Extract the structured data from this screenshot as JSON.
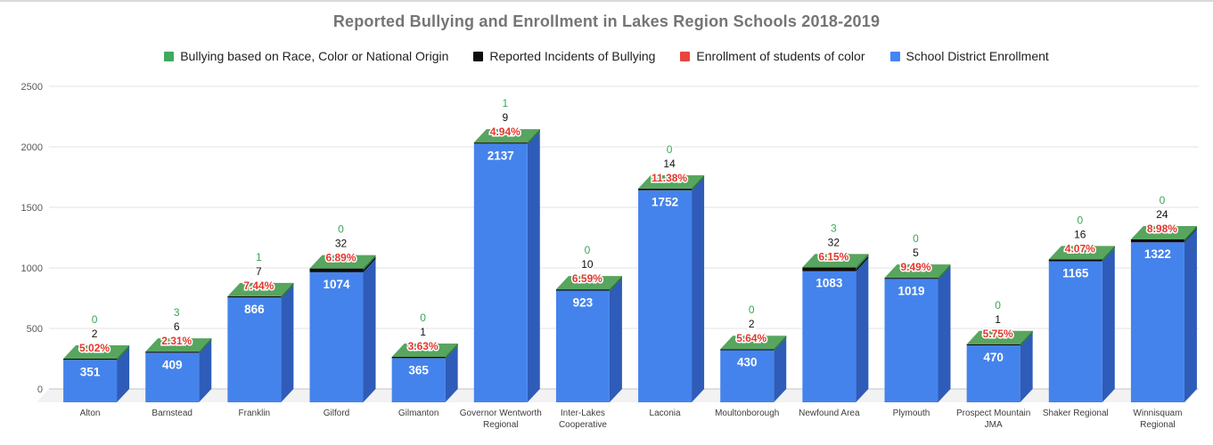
{
  "title": "Reported Bullying and Enrollment in Lakes Region Schools 2018-2019",
  "legend": [
    {
      "label": "Bullying based on Race, Color or National Origin",
      "color": "#3daa5e"
    },
    {
      "label": "Reported Incidents of Bullying",
      "color": "#0d0d0d"
    },
    {
      "label": "Enrollment of students of color",
      "color": "#e8453c"
    },
    {
      "label": "School District Enrollment",
      "color": "#4285f4"
    }
  ],
  "chart_data": {
    "type": "bar",
    "subtype": "3d-stacked-column",
    "title": "Reported Bullying and Enrollment in Lakes Region Schools 2018-2019",
    "categories": [
      "Alton",
      "Barnstead",
      "Franklin",
      "Gilford",
      "Gilmanton",
      "Governor Wentworth Regional",
      "Inter-Lakes Cooperative",
      "Laconia",
      "Moultonborough",
      "Newfound Area",
      "Plymouth",
      "Prospect Mountain JMA",
      "Shaker Regional",
      "Winnisquam Regional"
    ],
    "series": [
      {
        "name": "Bullying based on Race, Color or National Origin",
        "color": "#3aa757",
        "values": [
          0,
          3,
          1,
          0,
          0,
          1,
          0,
          0,
          0,
          3,
          0,
          0,
          0,
          0
        ]
      },
      {
        "name": "Reported Incidents of Bullying",
        "color": "#0d0d0d",
        "values": [
          2,
          6,
          7,
          32,
          1,
          9,
          10,
          14,
          2,
          32,
          5,
          1,
          16,
          24
        ]
      },
      {
        "name": "Enrollment of students of color",
        "color": "#e4372d",
        "values": [
          "5.02%",
          "2.31%",
          "7.44%",
          "6.89%",
          "3.63%",
          "4.94%",
          "6.59%",
          "11.38%",
          "5.64%",
          "6.15%",
          "9.49%",
          "5.75%",
          "4.07%",
          "8.98%"
        ]
      },
      {
        "name": "School District Enrollment",
        "color": "#4583ec",
        "values": [
          351,
          409,
          866,
          1074,
          365,
          2137,
          923,
          1752,
          430,
          1083,
          1019,
          470,
          1165,
          1322
        ]
      }
    ],
    "y_ticks": [
      0,
      500,
      1000,
      1500,
      2000,
      2500
    ],
    "ylim": [
      0,
      2500
    ],
    "grid": true,
    "legend_position": "top",
    "colors": {
      "bar_front": "#4583ec",
      "bar_side": "#2e5cb8",
      "cap_top": "#57a55f",
      "cap_edge": "#2f7a3e",
      "band_front": "#0d0d0d",
      "band_side": "#000000",
      "label_green": "#3aa757",
      "label_black": "#111111",
      "label_red": "#e4372d",
      "label_white": "#ffffff",
      "grid_line": "#e3e3e3",
      "floor_fill": "#f2f2f2",
      "floor_edge": "#cfcfcf",
      "tick_text": "#58595b",
      "axis_text": "#3d3d3d"
    }
  }
}
